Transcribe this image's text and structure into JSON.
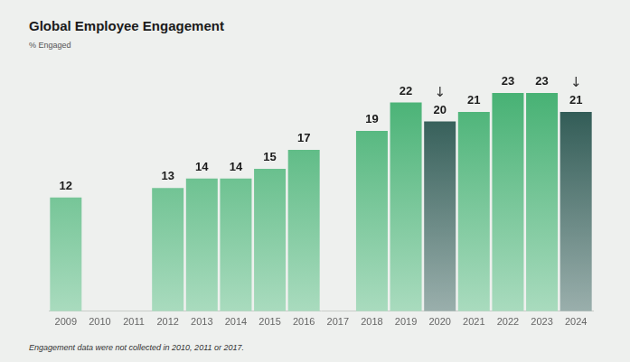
{
  "chart_data": {
    "type": "bar",
    "title": "Global Employee Engagement",
    "subtitle": "% Engaged",
    "categories": [
      "2009",
      "2010",
      "2011",
      "2012",
      "2013",
      "2014",
      "2015",
      "2016",
      "2017",
      "2018",
      "2019",
      "2020",
      "2021",
      "2022",
      "2023",
      "2024"
    ],
    "values": [
      12,
      null,
      null,
      13,
      14,
      14,
      15,
      17,
      null,
      19,
      22,
      20,
      21,
      23,
      23,
      21
    ],
    "colors": [
      "#3fae6e",
      null,
      null,
      "#3fae6e",
      "#3fae6e",
      "#3fae6e",
      "#3fae6e",
      "#3fae6e",
      null,
      "#3fae6e",
      "#3fae6e",
      "#1f4d47",
      "#3fae6e",
      "#3fae6e",
      "#3fae6e",
      "#1f4d47"
    ],
    "annotations": [
      {
        "category": "2020",
        "text": "↓"
      },
      {
        "category": "2024",
        "text": "↓"
      }
    ],
    "footnote": "Engagement data were not collected in 2010, 2011 or 2017.",
    "ylim": [
      0,
      25
    ],
    "data_labels": true,
    "tick_labels": "x",
    "grid": false
  }
}
